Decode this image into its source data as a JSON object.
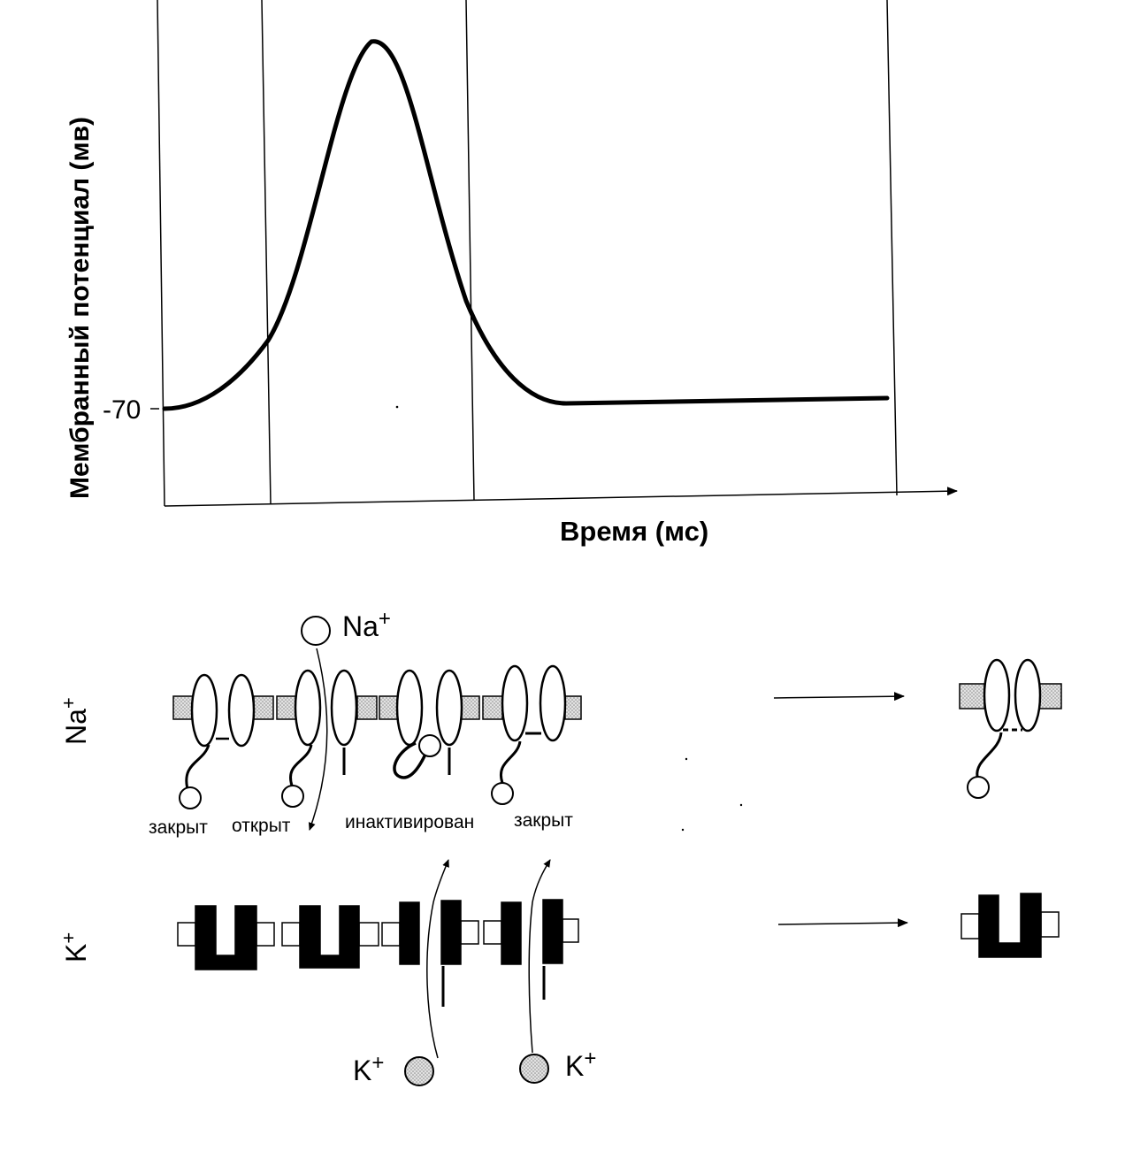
{
  "chart": {
    "ylabel": "Мембранный потенциал  (мв)",
    "xlabel": "Время (мс)",
    "y_tick": "-70"
  },
  "rows": {
    "na_label": "Na",
    "na_sup": "+",
    "k_label": "K",
    "k_sup": "+"
  },
  "na_ion": {
    "label": "Na",
    "sup": "+"
  },
  "k_ions": [
    {
      "label": "K",
      "sup": "+"
    },
    {
      "label": "K",
      "sup": "+"
    }
  ],
  "na_states": [
    "закрыт",
    "открыт",
    "инактивирован",
    "закрыт"
  ],
  "colors": {
    "ink": "#000000",
    "membrane_na": "#d4d4d4",
    "membrane_k": "#ffffff"
  }
}
